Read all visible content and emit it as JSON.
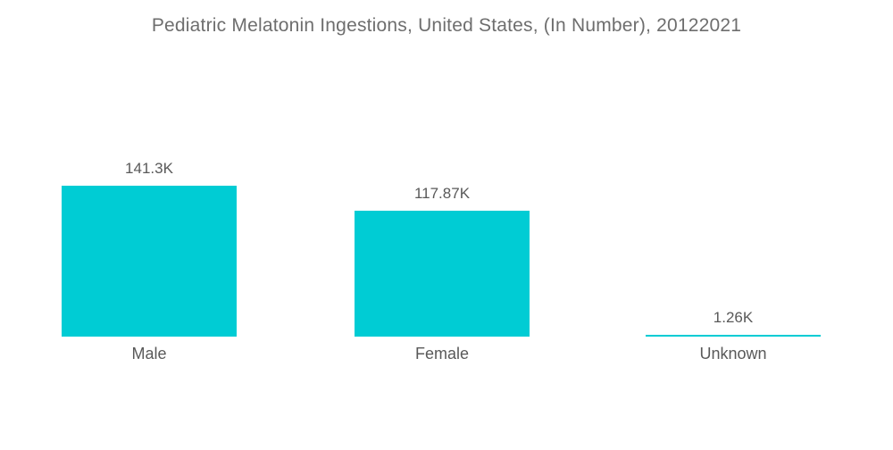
{
  "chart_data": {
    "type": "bar",
    "title": "Pediatric Melatonin Ingestions, United States, (In Number), 20122021",
    "categories": [
      "Male",
      "Female",
      "Unknown"
    ],
    "values": [
      141300,
      117870,
      1260
    ],
    "value_labels": [
      "141.3K",
      "117.87K",
      "1.26K"
    ],
    "ylim": [
      0,
      141300
    ],
    "grid": false,
    "legend": "none",
    "axes": "hidden",
    "bar_color": "#00ccd4",
    "text_color": "#595959",
    "title_color": "#6e6e6e",
    "background": "#ffffff"
  }
}
